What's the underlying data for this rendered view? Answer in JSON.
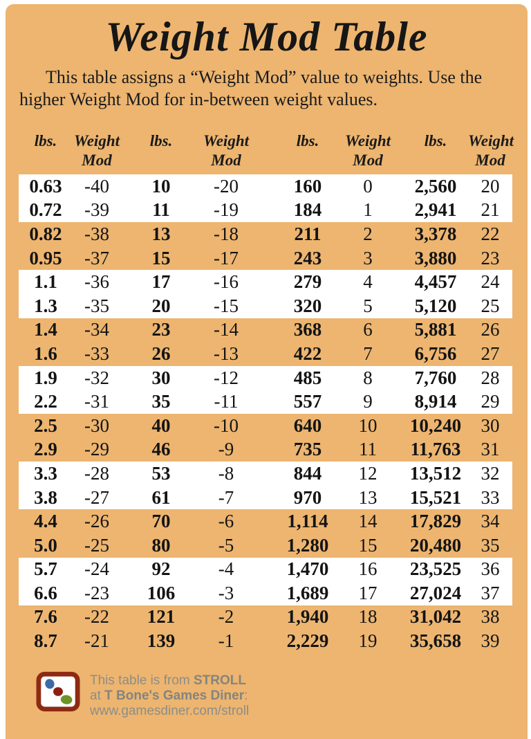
{
  "page": {
    "title": "Weight Mod Table",
    "intro": "This table assigns a “Weight Mod” value to weights. Use the higher Weight Mod for in-between weight values."
  },
  "table": {
    "column_group_headers": {
      "lbs": "lbs.",
      "mod_line1": "Weight",
      "mod_line2": "Mod"
    },
    "group_count": 4,
    "rows": [
      [
        "0.63",
        "-40",
        "10",
        "-20",
        "160",
        "0",
        "2,560",
        "20"
      ],
      [
        "0.72",
        "-39",
        "11",
        "-19",
        "184",
        "1",
        "2,941",
        "21"
      ],
      [
        "0.82",
        "-38",
        "13",
        "-18",
        "211",
        "2",
        "3,378",
        "22"
      ],
      [
        "0.95",
        "-37",
        "15",
        "-17",
        "243",
        "3",
        "3,880",
        "23"
      ],
      [
        "1.1",
        "-36",
        "17",
        "-16",
        "279",
        "4",
        "4,457",
        "24"
      ],
      [
        "1.3",
        "-35",
        "20",
        "-15",
        "320",
        "5",
        "5,120",
        "25"
      ],
      [
        "1.4",
        "-34",
        "23",
        "-14",
        "368",
        "6",
        "5,881",
        "26"
      ],
      [
        "1.6",
        "-33",
        "26",
        "-13",
        "422",
        "7",
        "6,756",
        "27"
      ],
      [
        "1.9",
        "-32",
        "30",
        "-12",
        "485",
        "8",
        "7,760",
        "28"
      ],
      [
        "2.2",
        "-31",
        "35",
        "-11",
        "557",
        "9",
        "8,914",
        "29"
      ],
      [
        "2.5",
        "-30",
        "40",
        "-10",
        "640",
        "10",
        "10,240",
        "30"
      ],
      [
        "2.9",
        "-29",
        "46",
        "-9",
        "735",
        "11",
        "11,763",
        "31"
      ],
      [
        "3.3",
        "-28",
        "53",
        "-8",
        "844",
        "12",
        "13,512",
        "32"
      ],
      [
        "3.8",
        "-27",
        "61",
        "-7",
        "970",
        "13",
        "15,521",
        "33"
      ],
      [
        "4.4",
        "-26",
        "70",
        "-6",
        "1,114",
        "14",
        "17,829",
        "34"
      ],
      [
        "5.0",
        "-25",
        "80",
        "-5",
        "1,280",
        "15",
        "20,480",
        "35"
      ],
      [
        "5.7",
        "-24",
        "92",
        "-4",
        "1,470",
        "16",
        "23,525",
        "36"
      ],
      [
        "6.6",
        "-23",
        "106",
        "-3",
        "1,689",
        "17",
        "27,024",
        "37"
      ],
      [
        "7.6",
        "-22",
        "121",
        "-2",
        "1,940",
        "18",
        "31,042",
        "38"
      ],
      [
        "8.7",
        "-21",
        "139",
        "-1",
        "2,229",
        "19",
        "35,658",
        "39"
      ]
    ]
  },
  "footer": {
    "text_prefix": "This table is from ",
    "source_name": "STROLL",
    "at_prefix": "at ",
    "site_name": "T Bone's Games Diner",
    "site_suffix": ":",
    "url": "www.gamesdiner.com/stroll",
    "logo": "games-diner-dice-logo"
  },
  "colors": {
    "background": "#edb570",
    "stripe_white": "#ffffff",
    "text": "#1a1a1a",
    "footer_text": "#8d8d87",
    "logo_border": "#8e2a12",
    "logo_blue": "#3d6ca5",
    "logo_red": "#8e1f10",
    "logo_green": "#6d9427"
  }
}
